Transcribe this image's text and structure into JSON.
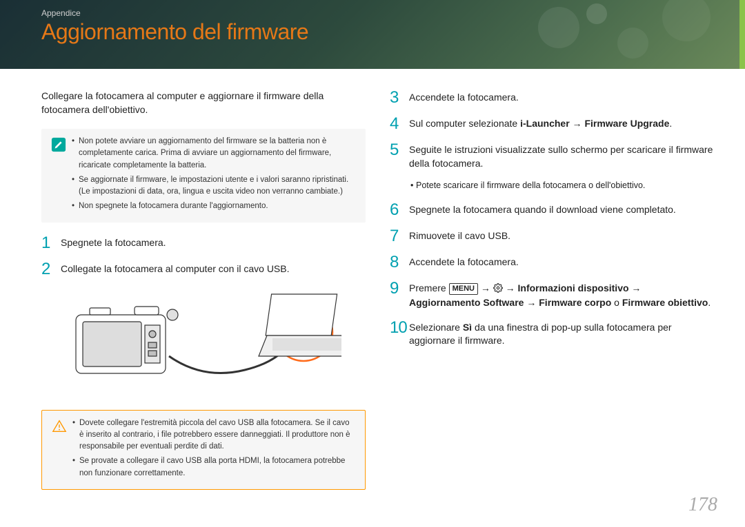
{
  "header": {
    "breadcrumb": "Appendice",
    "title": "Aggiornamento del firmware",
    "bg_gradient": [
      "#1a2f35",
      "#2d4a3d",
      "#4a6b4d",
      "#6b8a5a"
    ],
    "accent_bar": "#8bc34a",
    "title_color": "#e67817"
  },
  "left": {
    "intro": "Collegare la fotocamera al computer e aggiornare il firmware della fotocamera dell'obiettivo.",
    "info_box": {
      "icon": "pencil",
      "bg": "#f6f6f6",
      "items": [
        "Non potete avviare un aggiornamento del firmware se la batteria non è completamente carica. Prima di avviare un aggiornamento del firmware, ricaricate completamente la batteria.",
        "Se aggiornate il firmware, le impostazioni utente e i valori saranno ripristinati. (Le impostazioni di data, ora, lingua e uscita video non verranno cambiate.)",
        "Non spegnete la fotocamera durante l'aggiornamento."
      ]
    },
    "steps": [
      {
        "n": "1",
        "text": "Spegnete la fotocamera."
      },
      {
        "n": "2",
        "text": "Collegate la fotocamera al computer con il cavo USB."
      }
    ],
    "warn_box": {
      "icon": "warning",
      "border": "#ff9800",
      "items": [
        "Dovete collegare l'estremità piccola del cavo USB alla fotocamera. Se il cavo è inserito al contrario, i file potrebbero essere danneggiati. Il produttore non è responsabile per eventuali perdite di dati.",
        "Se provate a collegare il cavo USB alla porta HDMI, la fotocamera potrebbe non funzionare correttamente."
      ]
    }
  },
  "right": {
    "steps": [
      {
        "n": "3",
        "text": "Accendete la fotocamera."
      },
      {
        "n": "4",
        "html": "Sul computer selezionate <b>i-Launcher</b> → <b>Firmware Upgrade</b>."
      },
      {
        "n": "5",
        "text": "Seguite le istruzioni visualizzate sullo schermo per scaricare il firmware della fotocamera.",
        "sub": "Potete scaricare il firmware della fotocamera o dell'obiettivo."
      },
      {
        "n": "6",
        "text": "Spegnete la fotocamera quando il download viene completato."
      },
      {
        "n": "7",
        "text": "Rimuovete il cavo USB."
      },
      {
        "n": "8",
        "text": "Accendete la fotocamera."
      },
      {
        "n": "9",
        "html": "Premere <span class='menu-box'>MENU</span> → <span class='gear-icon'><svg width='14' height='14' viewBox='0 0 24 24'><path fill='none' stroke='#333' stroke-width='2' d='M12 15a3 3 0 100-6 3 3 0 000 6z M19.4 15a1.65 1.65 0 00.33 1.82l.06.06a2 2 0 11-2.83 2.83l-.06-.06a1.65 1.65 0 00-1.82-.33 1.65 1.65 0 00-1 1.51V21a2 2 0 01-4 0v-.09a1.65 1.65 0 00-1-1.51 1.65 1.65 0 00-1.82.33l-.06.06a2 2 0 11-2.83-2.83l.06-.06a1.65 1.65 0 00.33-1.82 1.65 1.65 0 00-1.51-1H3a2 2 0 010-4h.09a1.65 1.65 0 001.51-1 1.65 1.65 0 00-.33-1.82l-.06-.06a2 2 0 112.83-2.83l.06.06a1.65 1.65 0 001.82.33h0a1.65 1.65 0 001-1.51V3a2 2 0 014 0v.09a1.65 1.65 0 001 1.51 1.65 1.65 0 001.82-.33l.06-.06a2 2 0 012.83 2.83l-.06.06a1.65 1.65 0 00-.33 1.82v0a1.65 1.65 0 001.51 1H21a2 2 0 010 4h-.09a1.65 1.65 0 00-1.51 1z'/></svg></span> → <b>Informazioni dispositivo</b> → <b>Aggiornamento Software</b> → <b>Firmware corpo</b> o <b>Firmware obiettivo</b>."
      },
      {
        "n": "10",
        "html": "Selezionare <b>Sì</b> da una finestra di pop-up sulla fotocamera per aggiornare il firmware."
      }
    ]
  },
  "page_number": "178",
  "colors": {
    "step_num": "#00a0b0",
    "body_text": "#222222",
    "page_num": "#aaaaaa",
    "illustration_highlight": "#ff6b1a"
  }
}
